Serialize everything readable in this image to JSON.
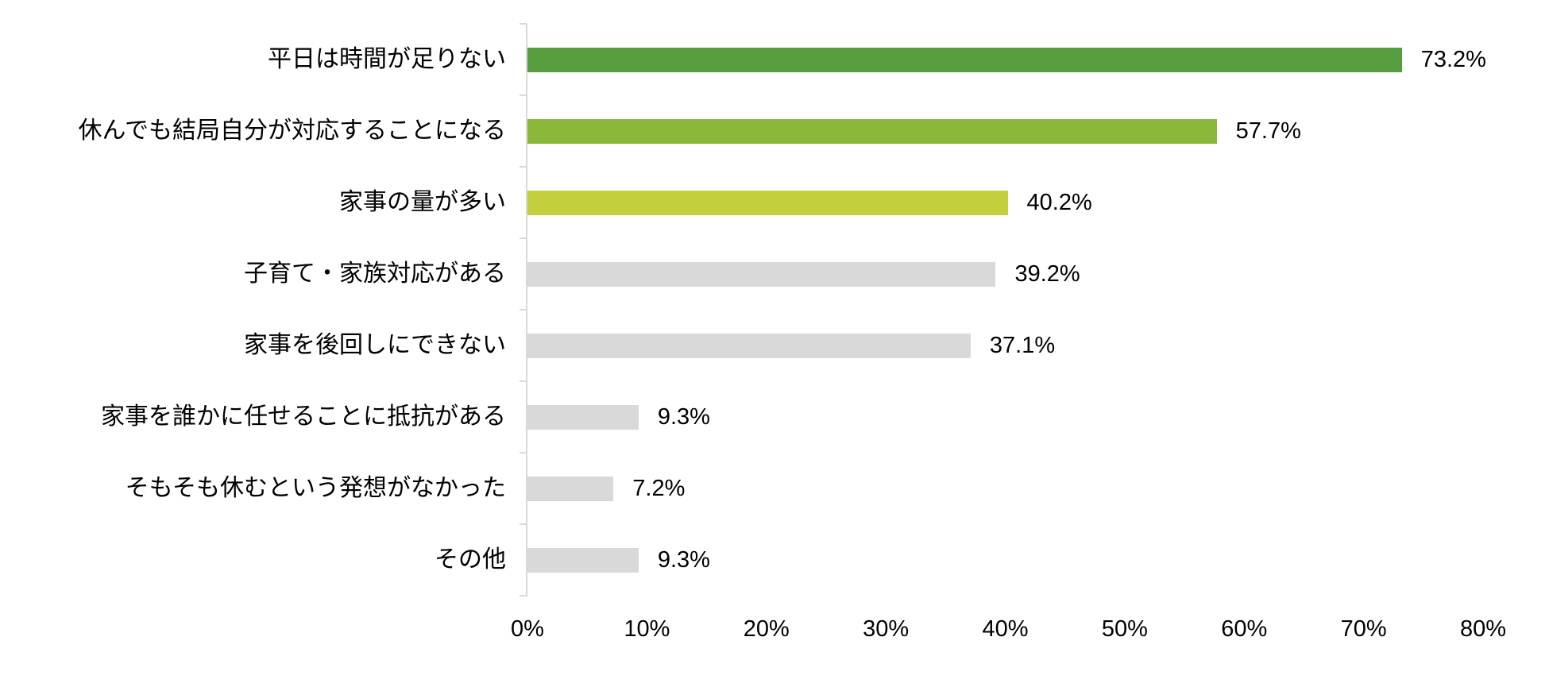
{
  "chart_data": {
    "type": "bar",
    "orientation": "horizontal",
    "title": "",
    "xlabel": "",
    "ylabel": "",
    "xlim": [
      0,
      80
    ],
    "grid": false,
    "legend": null,
    "categories": [
      "平日は時間が足りない",
      "休んでも結局自分が対応することになる",
      "家事の量が多い",
      "子育て・家族対応がある",
      "家事を後回しにできない",
      "家事を誰かに任せることに抵抗がある",
      "そもそも休むという発想がなかった",
      "その他"
    ],
    "values": [
      73.2,
      57.7,
      40.2,
      39.2,
      37.1,
      9.3,
      7.2,
      9.3
    ],
    "value_labels": [
      "73.2%",
      "57.7%",
      "40.2%",
      "39.2%",
      "37.1%",
      "9.3%",
      "7.2%",
      "9.3%"
    ],
    "bar_colors": [
      "#569e3d",
      "#8ab83a",
      "#c3cf3c",
      "#d9d9d9",
      "#d9d9d9",
      "#d9d9d9",
      "#d9d9d9",
      "#d9d9d9"
    ],
    "x_ticks": [
      "0%",
      "10%",
      "20%",
      "30%",
      "40%",
      "50%",
      "60%",
      "70%",
      "80%"
    ]
  },
  "colors": {
    "axis": "#d9d9d9",
    "text": "#000000"
  }
}
